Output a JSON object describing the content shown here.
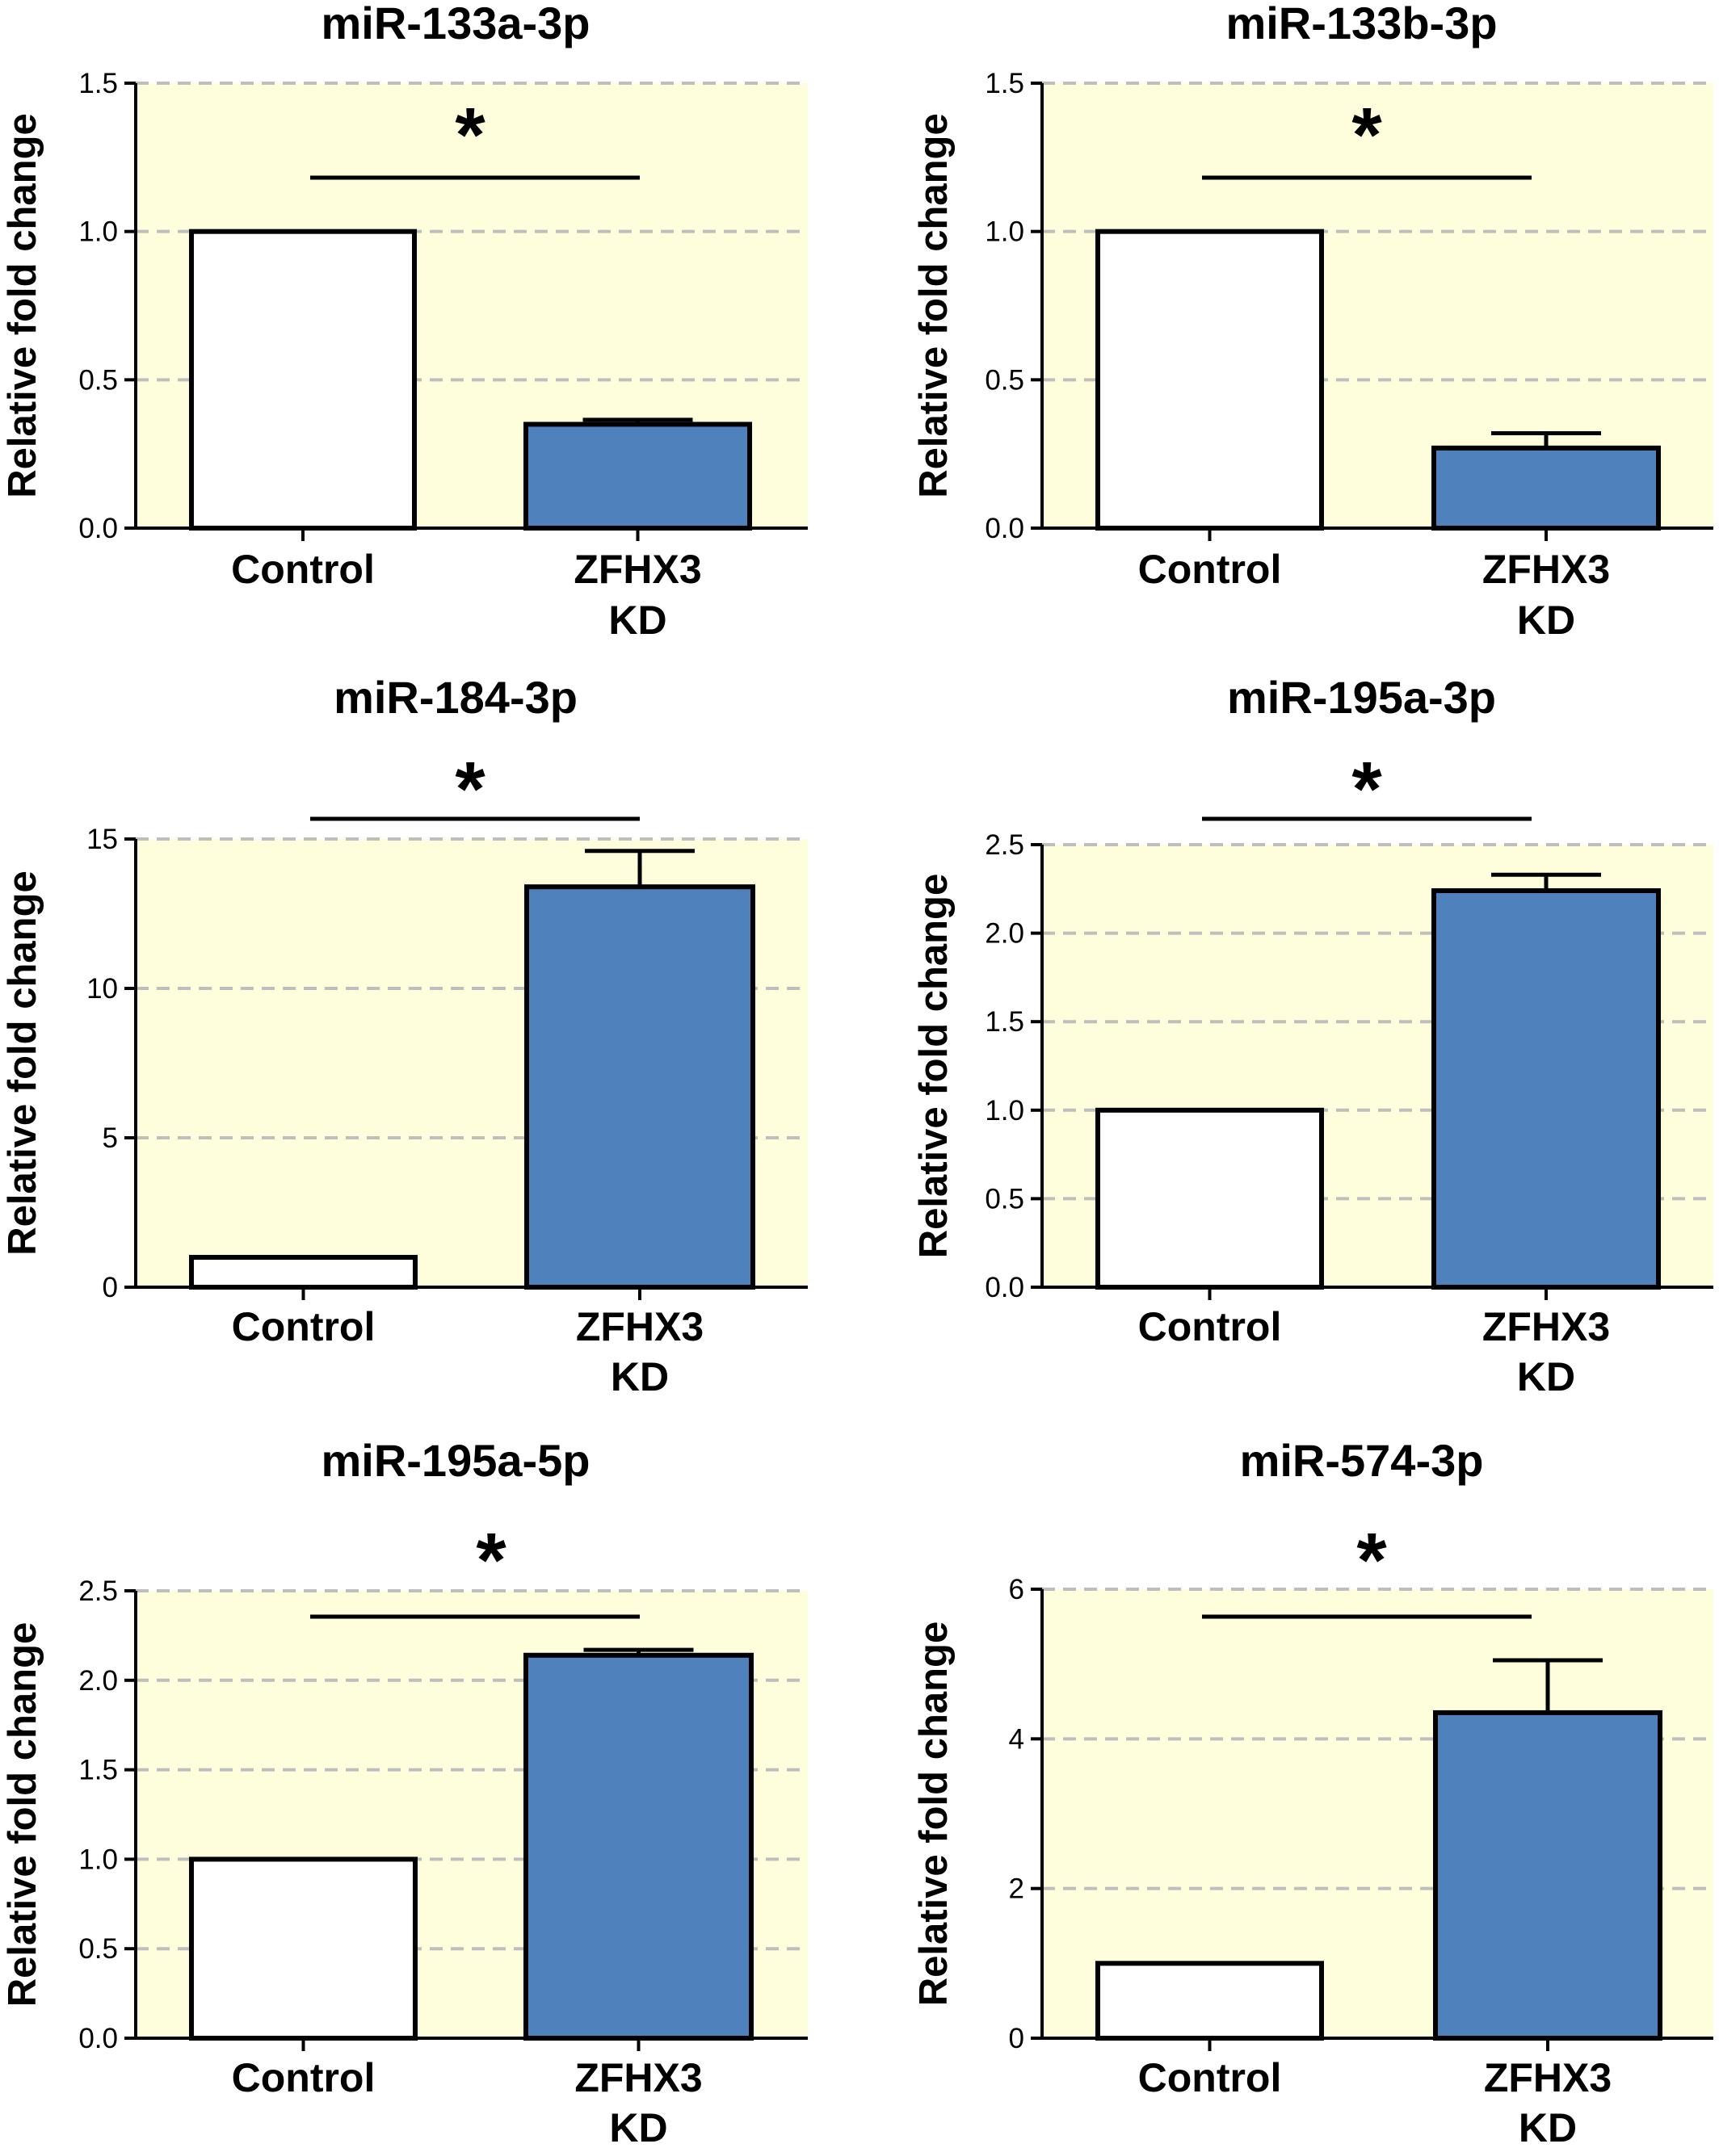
{
  "colors": {
    "plot_background": "#FEFDDC",
    "gridline": "#BEBEBE",
    "control_bar": "#FFFFFF",
    "kd_bar": "#4F81BD",
    "outline": "#000000"
  },
  "chart_data": [
    {
      "type": "bar",
      "title": "miR-133a-3p",
      "ylabel": "Relative fold change",
      "categories": [
        [
          "Control"
        ],
        [
          "ZFHX3",
          "KD"
        ]
      ],
      "values": [
        1.0,
        0.35
      ],
      "error_upper": [
        null,
        0.365
      ],
      "ylim": [
        0,
        1.5
      ],
      "yticks": [
        0.0,
        0.5,
        1.0,
        1.5
      ],
      "ytick_labels": [
        "0.0",
        "0.5",
        "1.0",
        "1.5"
      ],
      "grid": "dashed horizontal at ticks",
      "significance": {
        "label": "*",
        "between": [
          "Control",
          "ZFHX3 KD"
        ]
      }
    },
    {
      "type": "bar",
      "title": "miR-133b-3p",
      "ylabel": "Relative fold change",
      "categories": [
        [
          "Control"
        ],
        [
          "ZFHX3",
          "KD"
        ]
      ],
      "values": [
        1.0,
        0.27
      ],
      "error_upper": [
        null,
        0.32
      ],
      "ylim": [
        0,
        1.5
      ],
      "yticks": [
        0.0,
        0.5,
        1.0,
        1.5
      ],
      "ytick_labels": [
        "0.0",
        "0.5",
        "1.0",
        "1.5"
      ],
      "grid": "dashed horizontal at ticks",
      "significance": {
        "label": "*",
        "between": [
          "Control",
          "ZFHX3 KD"
        ]
      }
    },
    {
      "type": "bar",
      "title": "miR-184-3p",
      "ylabel": "Relative fold change",
      "categories": [
        [
          "Control"
        ],
        [
          "ZFHX3",
          "KD"
        ]
      ],
      "values": [
        1.0,
        13.4
      ],
      "error_upper": [
        null,
        14.6
      ],
      "ylim": [
        0,
        15
      ],
      "yticks": [
        0,
        5,
        10,
        15
      ],
      "ytick_labels": [
        "0",
        "5",
        "10",
        "15"
      ],
      "grid": "dashed horizontal at ticks",
      "significance": {
        "label": "*",
        "between": [
          "Control",
          "ZFHX3 KD"
        ]
      }
    },
    {
      "type": "bar",
      "title": "miR-195a-3p",
      "ylabel": "Relative fold change",
      "categories": [
        [
          "Control"
        ],
        [
          "ZFHX3",
          "KD"
        ]
      ],
      "values": [
        1.0,
        2.24
      ],
      "error_upper": [
        null,
        2.33
      ],
      "ylim": [
        0,
        2.5
      ],
      "yticks": [
        0.0,
        0.5,
        1.0,
        1.5,
        2.0,
        2.5
      ],
      "ytick_labels": [
        "0.0",
        "0.5",
        "1.0",
        "1.5",
        "2.0",
        "2.5"
      ],
      "grid": "dashed horizontal at ticks",
      "significance": {
        "label": "*",
        "between": [
          "Control",
          "ZFHX3 KD"
        ]
      }
    },
    {
      "type": "bar",
      "title": "miR-195a-5p",
      "ylabel": "Relative fold change",
      "categories": [
        [
          "Control"
        ],
        [
          "ZFHX3",
          "KD"
        ]
      ],
      "values": [
        1.0,
        2.14
      ],
      "error_upper": [
        null,
        2.17
      ],
      "ylim": [
        0,
        2.5
      ],
      "yticks": [
        0.0,
        0.5,
        1.0,
        1.5,
        2.0,
        2.5
      ],
      "ytick_labels": [
        "0.0",
        "0.5",
        "1.0",
        "1.5",
        "2.0",
        "2.5"
      ],
      "grid": "dashed horizontal at ticks",
      "significance": {
        "label": "*",
        "between": [
          "Control",
          "ZFHX3 KD"
        ]
      }
    },
    {
      "type": "bar",
      "title": "miR-574-3p",
      "ylabel": "Relative fold change",
      "categories": [
        [
          "Control"
        ],
        [
          "ZFHX3",
          "KD"
        ]
      ],
      "values": [
        1.0,
        4.35
      ],
      "error_upper": [
        null,
        5.05
      ],
      "ylim": [
        0,
        6
      ],
      "yticks": [
        0,
        2,
        4,
        6
      ],
      "ytick_labels": [
        "0",
        "2",
        "4",
        "6"
      ],
      "grid": "dashed horizontal at ticks",
      "significance": {
        "label": "*",
        "between": [
          "Control",
          "ZFHX3 KD"
        ]
      }
    }
  ]
}
